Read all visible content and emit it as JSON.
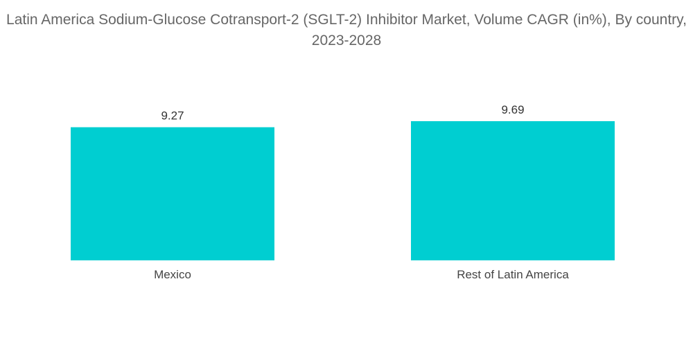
{
  "chart_data": {
    "type": "bar",
    "title": "Latin America Sodium-Glucose Cotransport-2 (SGLT-2) Inhibitor Market, Volume CAGR (in%), By country, 2023-2028",
    "categories": [
      "Mexico",
      "Rest of Latin America"
    ],
    "values": [
      9.27,
      9.69
    ],
    "value_labels": [
      "9.27",
      "9.69"
    ],
    "xlabel": "",
    "ylabel": "",
    "ylim": [
      0,
      9.69
    ],
    "grid": false,
    "legend": "none",
    "bar_color": "#00CED1"
  }
}
